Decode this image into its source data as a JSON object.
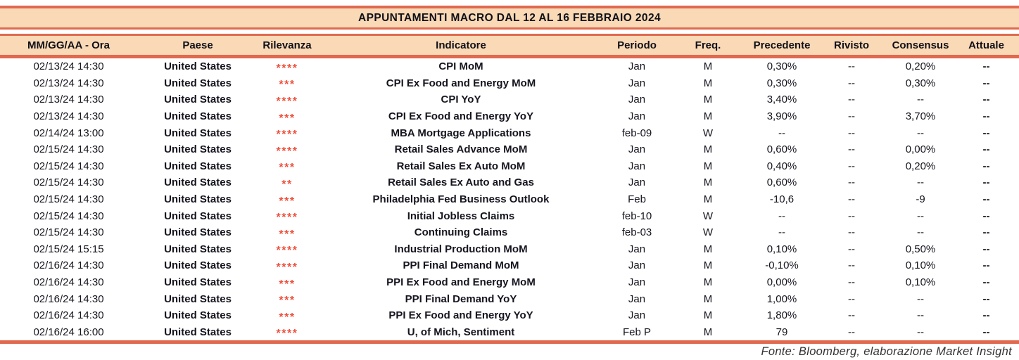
{
  "title": "APPUNTAMENTI MACRO DAL 12 AL 16 FEBBRAIO 2024",
  "footer": "Fonte: Bloomberg, elaborazione Market Insight",
  "colors": {
    "band_background": "#FAD9B6",
    "border": "#E0694F",
    "relevance_stars": "#F0503C",
    "text": "#15151F"
  },
  "columns": [
    "MM/GG/AA - Ora",
    "Paese",
    "Rilevanza",
    "Indicatore",
    "Periodo",
    "Freq.",
    "Precedente",
    "Rivisto",
    "Consensus",
    "Attuale"
  ],
  "rows": [
    {
      "datetime": "02/13/24 14:30",
      "country": "United States",
      "relevance": "****",
      "indicator": "CPI MoM",
      "period": "Jan",
      "freq": "M",
      "previous": "0,30%",
      "revised": "--",
      "consensus": "0,20%",
      "actual": "--"
    },
    {
      "datetime": "02/13/24 14:30",
      "country": "United States",
      "relevance": "***",
      "indicator": "CPI Ex Food and Energy MoM",
      "period": "Jan",
      "freq": "M",
      "previous": "0,30%",
      "revised": "--",
      "consensus": "0,30%",
      "actual": "--"
    },
    {
      "datetime": "02/13/24 14:30",
      "country": "United States",
      "relevance": "****",
      "indicator": "CPI YoY",
      "period": "Jan",
      "freq": "M",
      "previous": "3,40%",
      "revised": "--",
      "consensus": "--",
      "actual": "--"
    },
    {
      "datetime": "02/13/24 14:30",
      "country": "United States",
      "relevance": "***",
      "indicator": "CPI Ex Food and Energy YoY",
      "period": "Jan",
      "freq": "M",
      "previous": "3,90%",
      "revised": "--",
      "consensus": "3,70%",
      "actual": "--"
    },
    {
      "datetime": "02/14/24 13:00",
      "country": "United States",
      "relevance": "****",
      "indicator": "MBA Mortgage Applications",
      "period": "feb-09",
      "freq": "W",
      "previous": "--",
      "revised": "--",
      "consensus": "--",
      "actual": "--"
    },
    {
      "datetime": "02/15/24 14:30",
      "country": "United States",
      "relevance": "****",
      "indicator": "Retail Sales Advance MoM",
      "period": "Jan",
      "freq": "M",
      "previous": "0,60%",
      "revised": "--",
      "consensus": "0,00%",
      "actual": "--"
    },
    {
      "datetime": "02/15/24 14:30",
      "country": "United States",
      "relevance": "***",
      "indicator": "Retail Sales Ex Auto MoM",
      "period": "Jan",
      "freq": "M",
      "previous": "0,40%",
      "revised": "--",
      "consensus": "0,20%",
      "actual": "--"
    },
    {
      "datetime": "02/15/24 14:30",
      "country": "United States",
      "relevance": "**",
      "indicator": "Retail Sales Ex Auto and Gas",
      "period": "Jan",
      "freq": "M",
      "previous": "0,60%",
      "revised": "--",
      "consensus": "--",
      "actual": "--"
    },
    {
      "datetime": "02/15/24 14:30",
      "country": "United States",
      "relevance": "***",
      "indicator": "Philadelphia Fed Business Outlook",
      "period": "Feb",
      "freq": "M",
      "previous": "-10,6",
      "revised": "--",
      "consensus": "-9",
      "actual": "--"
    },
    {
      "datetime": "02/15/24 14:30",
      "country": "United States",
      "relevance": "****",
      "indicator": "Initial Jobless Claims",
      "period": "feb-10",
      "freq": "W",
      "previous": "--",
      "revised": "--",
      "consensus": "--",
      "actual": "--"
    },
    {
      "datetime": "02/15/24 14:30",
      "country": "United States",
      "relevance": "***",
      "indicator": "Continuing Claims",
      "period": "feb-03",
      "freq": "W",
      "previous": "--",
      "revised": "--",
      "consensus": "--",
      "actual": "--"
    },
    {
      "datetime": "02/15/24 15:15",
      "country": "United States",
      "relevance": "****",
      "indicator": "Industrial Production MoM",
      "period": "Jan",
      "freq": "M",
      "previous": "0,10%",
      "revised": "--",
      "consensus": "0,50%",
      "actual": "--"
    },
    {
      "datetime": "02/16/24 14:30",
      "country": "United States",
      "relevance": "****",
      "indicator": "PPI Final Demand MoM",
      "period": "Jan",
      "freq": "M",
      "previous": "-0,10%",
      "revised": "--",
      "consensus": "0,10%",
      "actual": "--"
    },
    {
      "datetime": "02/16/24 14:30",
      "country": "United States",
      "relevance": "***",
      "indicator": "PPI Ex Food and Energy MoM",
      "period": "Jan",
      "freq": "M",
      "previous": "0,00%",
      "revised": "--",
      "consensus": "0,10%",
      "actual": "--"
    },
    {
      "datetime": "02/16/24 14:30",
      "country": "United States",
      "relevance": "***",
      "indicator": "PPI Final Demand YoY",
      "period": "Jan",
      "freq": "M",
      "previous": "1,00%",
      "revised": "--",
      "consensus": "--",
      "actual": "--"
    },
    {
      "datetime": "02/16/24 14:30",
      "country": "United States",
      "relevance": "***",
      "indicator": "PPI Ex Food and Energy YoY",
      "period": "Jan",
      "freq": "M",
      "previous": "1,80%",
      "revised": "--",
      "consensus": "--",
      "actual": "--"
    },
    {
      "datetime": "02/16/24 16:00",
      "country": "United States",
      "relevance": "****",
      "indicator": "U, of Mich, Sentiment",
      "period": "Feb P",
      "freq": "M",
      "previous": "79",
      "revised": "--",
      "consensus": "--",
      "actual": "--"
    }
  ]
}
